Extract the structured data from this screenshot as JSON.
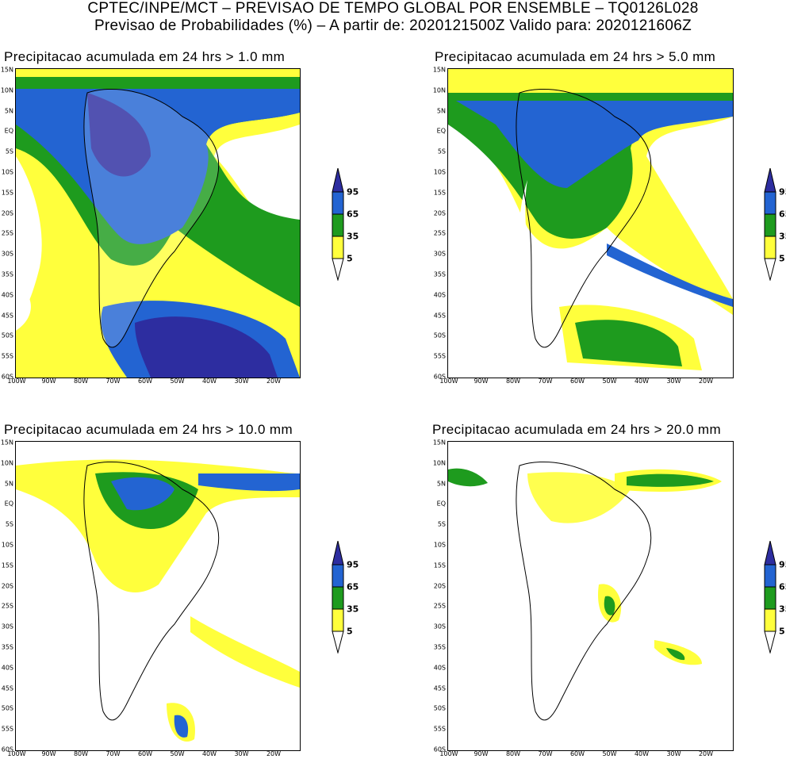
{
  "header": {
    "line1": "CPTEC/INPE/MCT – PREVISAO DE TEMPO GLOBAL POR ENSEMBLE – TQ0126L028",
    "line2": "Previsao de Probabilidades (%) –   A partir de: 2020121500Z  Valido para: 2020121606Z"
  },
  "axes": {
    "lat_labels": [
      "15N",
      "10N",
      "5N",
      "EQ",
      "5S",
      "10S",
      "15S",
      "20S",
      "25S",
      "30S",
      "35S",
      "40S",
      "45S",
      "50S",
      "55S",
      "60S"
    ],
    "lon_labels": [
      "100W",
      "90W",
      "80W",
      "70W",
      "60W",
      "50W",
      "40W",
      "30W",
      "20W"
    ]
  },
  "legend": {
    "levels": [
      "95",
      "65",
      "35",
      "5"
    ],
    "colors": {
      "yellow": "#ffff3c",
      "green": "#1e9b1e",
      "blue": "#2364d2",
      "navy": "#2d2da0"
    }
  },
  "panels": [
    {
      "title": "Precipitacao acumulada em 24 hrs > 1.0 mm"
    },
    {
      "title": "Precipitacao acumulada em 24 hrs > 5.0 mm"
    },
    {
      "title": "Precipitacao acumulada em 24 hrs > 10.0 mm"
    },
    {
      "title": "Precipitacao acumulada em 24 hrs > 20.0 mm"
    }
  ]
}
